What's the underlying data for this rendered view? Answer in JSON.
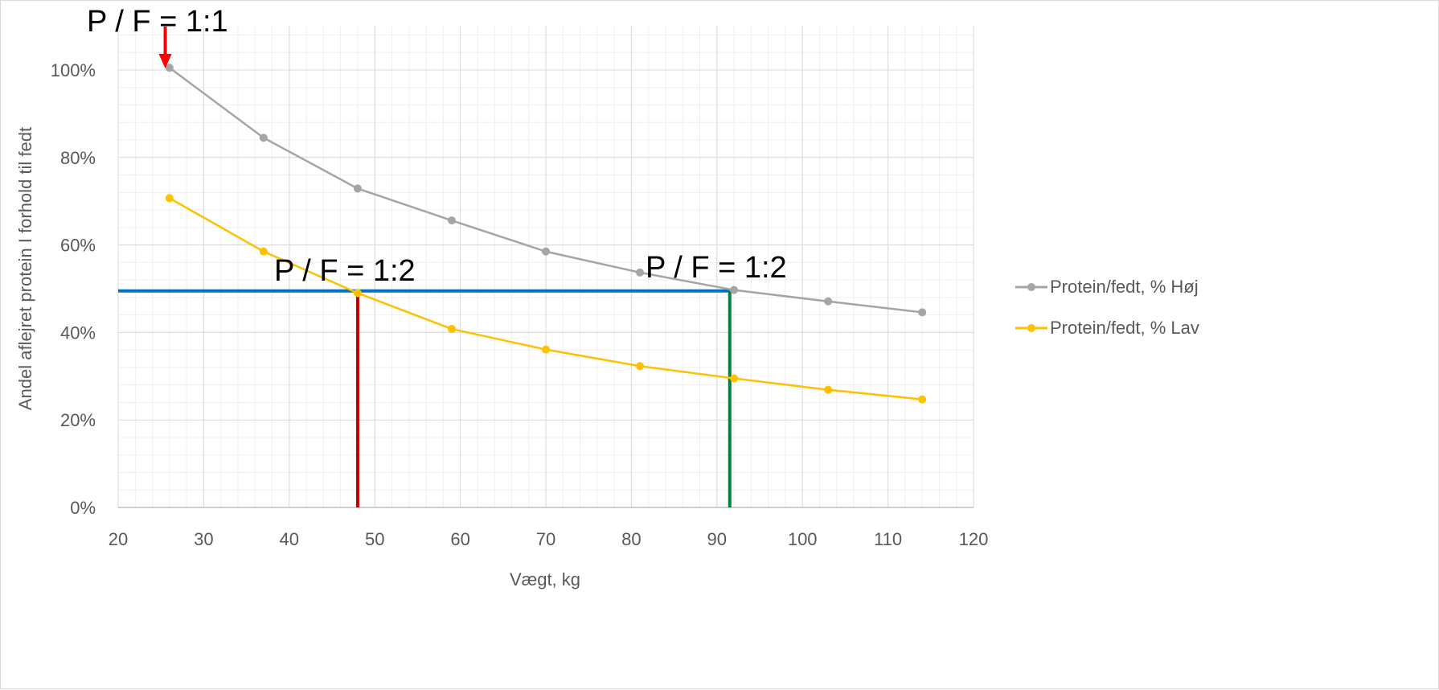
{
  "chart_data": {
    "type": "line",
    "xlabel": "Vægt, kg",
    "ylabel": "Andel aflejret protein I forhold til fedt",
    "xlim": [
      20,
      120
    ],
    "ylim": [
      0,
      1.0
    ],
    "x_ticks": [
      "20",
      "30",
      "40",
      "50",
      "60",
      "70",
      "80",
      "90",
      "100",
      "110",
      "120"
    ],
    "y_ticks": [
      "0%",
      "20%",
      "40%",
      "60%",
      "80%",
      "100%"
    ],
    "grid": "major and minor",
    "legend_position": "right",
    "x": [
      26,
      37,
      48,
      59,
      70,
      81,
      92,
      103,
      114
    ],
    "series": [
      {
        "name": "Protein/fedt, % Høj",
        "color": "#a5a5a5",
        "values": [
          1.005,
          0.845,
          0.729,
          0.656,
          0.585,
          0.537,
          0.497,
          0.471,
          0.446
        ]
      },
      {
        "name": "Protein/fedt, % Lav",
        "color": "#ffc000",
        "values": [
          0.707,
          0.585,
          0.49,
          0.408,
          0.361,
          0.323,
          0.295,
          0.269,
          0.247
        ]
      }
    ],
    "annotations": [
      {
        "text": "P / F = 1:1"
      },
      {
        "text": "P / F = 1:2"
      },
      {
        "text": "P / F = 1:2"
      }
    ],
    "reference_lines": [
      {
        "kind": "horizontal",
        "y": 0.495,
        "x_from": 20,
        "x_to": 91.5,
        "color": "#0070c0"
      },
      {
        "kind": "vertical",
        "x": 48,
        "y_from": 0,
        "y_to": 0.495,
        "color": "#c00000"
      },
      {
        "kind": "vertical",
        "x": 91.5,
        "y_from": 0,
        "y_to": 0.495,
        "color": "#00843d"
      }
    ],
    "arrow": {
      "x": 25.5,
      "color": "#ff0000"
    }
  }
}
